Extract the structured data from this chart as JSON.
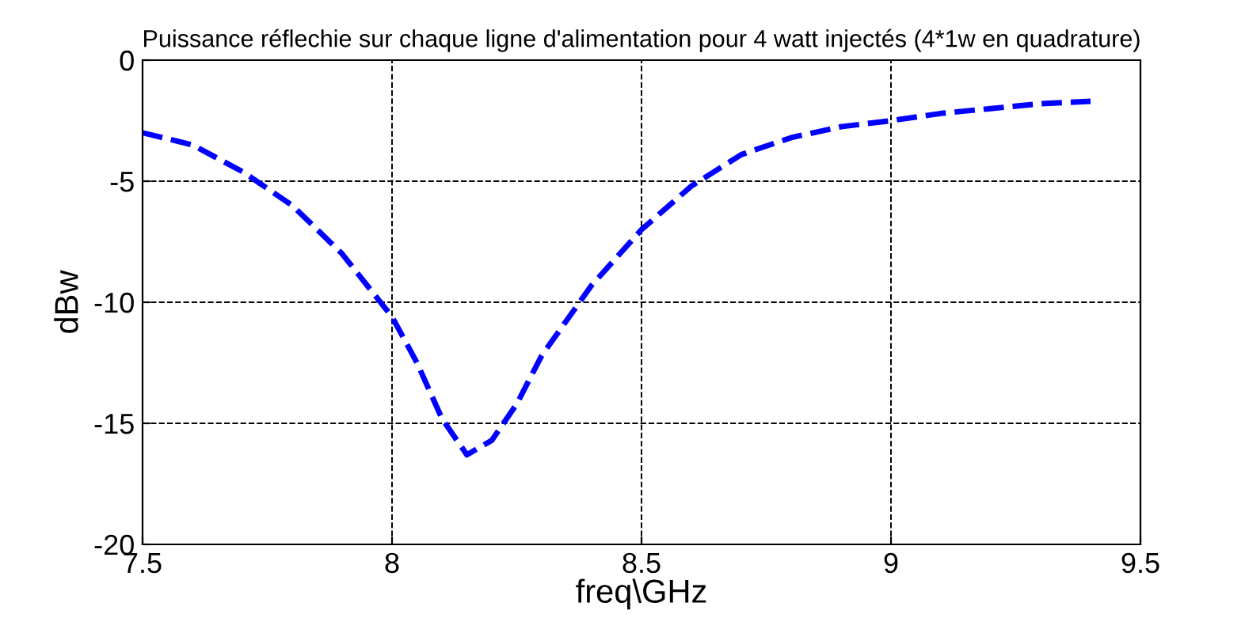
{
  "chart_data": {
    "type": "line",
    "title": "Puissance réflechie sur chaque ligne d'alimentation pour 4 watt injectés (4*1w en quadrature)",
    "xlabel": "freq\\GHz",
    "ylabel": "dBw",
    "x": [
      7.5,
      7.6,
      7.7,
      7.8,
      7.9,
      8.0,
      8.05,
      8.1,
      8.15,
      8.2,
      8.25,
      8.3,
      8.4,
      8.5,
      8.6,
      8.7,
      8.8,
      8.9,
      9.0,
      9.1,
      9.2,
      9.3,
      9.4
    ],
    "series": [
      {
        "color": "#0000ff",
        "values": [
          -3.0,
          -3.5,
          -4.6,
          -6.0,
          -8.0,
          -10.6,
          -12.5,
          -14.8,
          -16.3,
          -15.7,
          -14.2,
          -12.2,
          -9.3,
          -7.0,
          -5.2,
          -3.9,
          -3.2,
          -2.75,
          -2.5,
          -2.2,
          -2.0,
          -1.8,
          -1.7
        ]
      }
    ],
    "xlim": [
      7.5,
      9.5
    ],
    "ylim": [
      -20,
      0
    ],
    "xticks": [
      7.5,
      8,
      8.5,
      9,
      9.5
    ],
    "yticks": [
      -20,
      -15,
      -10,
      -5,
      0
    ],
    "grid": true,
    "line_style": "dashed",
    "marker": "none"
  }
}
